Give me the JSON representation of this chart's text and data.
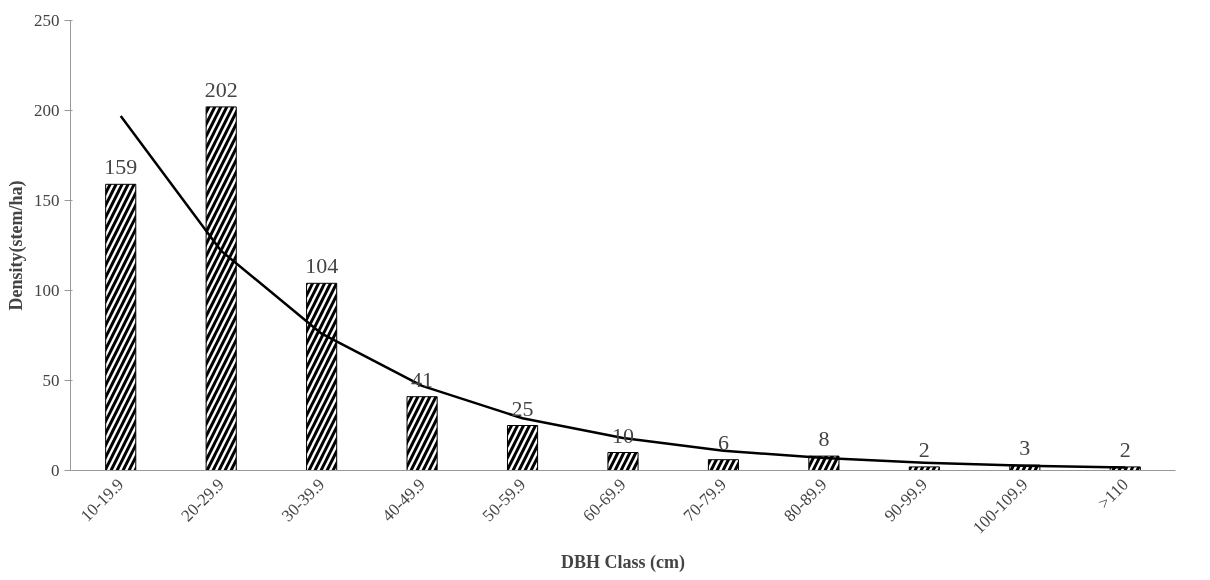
{
  "chart_data": {
    "type": "bar",
    "xlabel": "DBH Class (cm)",
    "ylabel": "Density(stem/ha)",
    "categories": [
      "10-19.9",
      "20-29.9",
      "30-39.9",
      "40-49.9",
      "50-59.9",
      "60-69.9",
      "70-79.9",
      "80-89.9",
      "90-99.9",
      "100-109.9",
      ">110"
    ],
    "series": [
      {
        "color": "#000000",
        "values": [
          159,
          202,
          104,
          41,
          25,
          10,
          6,
          8,
          2,
          3,
          2
        ],
        "value_labels": [
          "159",
          "202",
          "104",
          "41",
          "25",
          "10",
          "6",
          "8",
          "2",
          "3",
          "2"
        ]
      },
      {
        "type": "line",
        "color": "#000000",
        "values": [
          197,
          122,
          76,
          47,
          29,
          18,
          11,
          6.9,
          4.3,
          2.6,
          1.6
        ]
      }
    ],
    "ylim": [
      0,
      250
    ],
    "yticks": [
      0,
      50,
      100,
      150,
      200,
      250
    ],
    "grid": false,
    "marker": "none",
    "line_style": "solid"
  }
}
